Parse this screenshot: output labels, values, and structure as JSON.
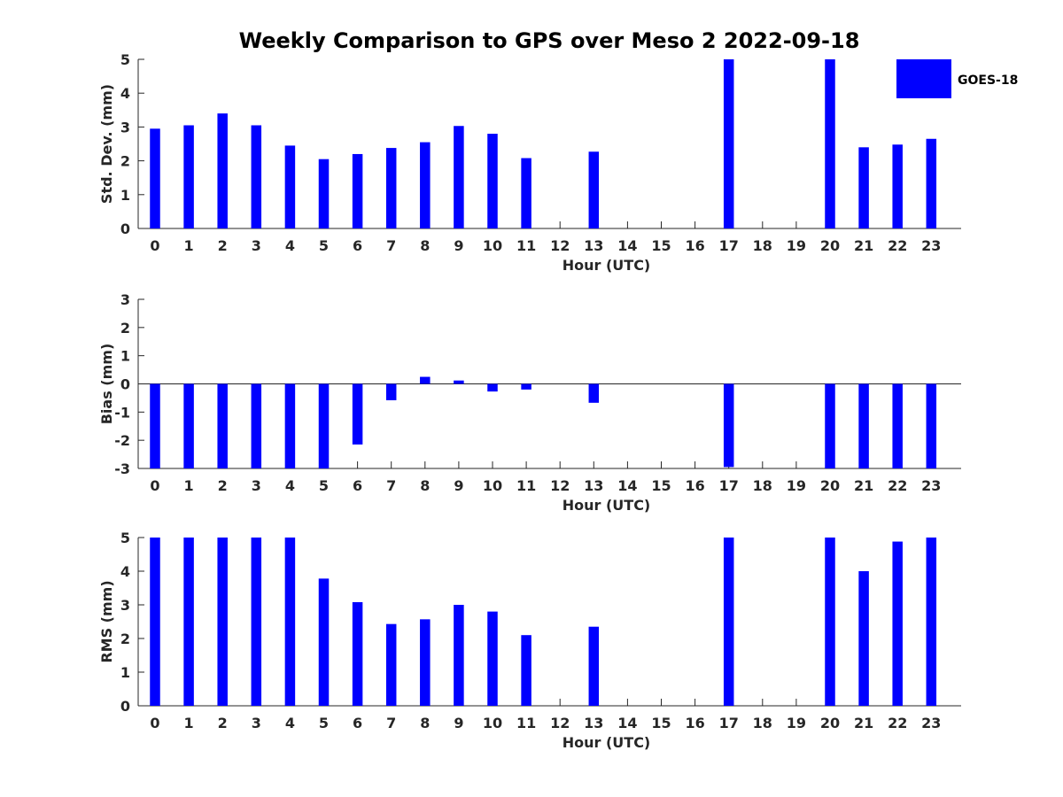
{
  "figure": {
    "title": "Weekly Comparison to GPS over Meso 2 2022-09-18"
  },
  "legend": {
    "label": "GOES-18",
    "color": "#0000ff",
    "placement": "top-right"
  },
  "chart_data": [
    {
      "type": "bar",
      "xlabel": "Hour (UTC)",
      "ylabel": "Std. Dev. (mm)",
      "ylim": [
        0,
        5
      ],
      "yticks": [
        0,
        1,
        2,
        3,
        4,
        5
      ],
      "categories": [
        "0",
        "1",
        "2",
        "3",
        "4",
        "5",
        "6",
        "7",
        "8",
        "9",
        "10",
        "11",
        "12",
        "13",
        "14",
        "15",
        "16",
        "17",
        "18",
        "19",
        "20",
        "21",
        "22",
        "23"
      ],
      "series": [
        {
          "name": "GOES-18",
          "color": "#0000ff",
          "values": [
            2.95,
            3.05,
            3.4,
            3.05,
            2.45,
            2.05,
            2.2,
            2.38,
            2.55,
            3.03,
            2.8,
            2.08,
            null,
            2.27,
            null,
            null,
            null,
            5,
            null,
            null,
            5,
            2.4,
            2.48,
            2.65
          ]
        }
      ]
    },
    {
      "type": "bar",
      "xlabel": "Hour (UTC)",
      "ylabel": "Bias (mm)",
      "ylim": [
        -3,
        3
      ],
      "yticks": [
        -3,
        -2,
        -1,
        0,
        1,
        2,
        3
      ],
      "categories": [
        "0",
        "1",
        "2",
        "3",
        "4",
        "5",
        "6",
        "7",
        "8",
        "9",
        "10",
        "11",
        "12",
        "13",
        "14",
        "15",
        "16",
        "17",
        "18",
        "19",
        "20",
        "21",
        "22",
        "23"
      ],
      "series": [
        {
          "name": "GOES-18",
          "color": "#0000ff",
          "values": [
            -3,
            -3,
            -3,
            -3,
            -3,
            -3,
            -2.15,
            -0.58,
            0.25,
            0.12,
            -0.27,
            -0.2,
            null,
            -0.67,
            null,
            null,
            null,
            -2.95,
            null,
            null,
            -3,
            -3,
            -3,
            -3
          ]
        }
      ]
    },
    {
      "type": "bar",
      "xlabel": "Hour (UTC)",
      "ylabel": "RMS (mm)",
      "ylim": [
        0,
        5
      ],
      "yticks": [
        0,
        1,
        2,
        3,
        4,
        5
      ],
      "categories": [
        "0",
        "1",
        "2",
        "3",
        "4",
        "5",
        "6",
        "7",
        "8",
        "9",
        "10",
        "11",
        "12",
        "13",
        "14",
        "15",
        "16",
        "17",
        "18",
        "19",
        "20",
        "21",
        "22",
        "23"
      ],
      "series": [
        {
          "name": "GOES-18",
          "color": "#0000ff",
          "values": [
            5,
            5,
            5,
            5,
            5,
            3.78,
            3.08,
            2.43,
            2.57,
            3.0,
            2.8,
            2.1,
            null,
            2.35,
            null,
            null,
            null,
            5,
            null,
            null,
            5,
            4.0,
            4.88,
            5
          ]
        }
      ]
    }
  ]
}
